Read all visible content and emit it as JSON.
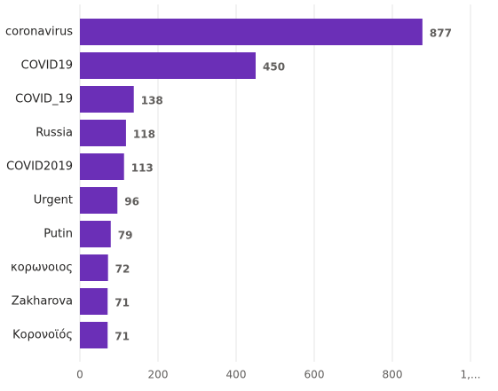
{
  "chart_data": {
    "type": "hbar",
    "categories": [
      "coronavirus",
      "COVID19",
      "COVID_19",
      "Russia",
      "COVID2019",
      "Urgent",
      "Putin",
      "κορωνοιος",
      "Zakharova",
      "Κορονοϊός"
    ],
    "values": [
      877,
      450,
      138,
      118,
      113,
      96,
      79,
      72,
      71,
      71
    ],
    "color": "#6b2fb7",
    "xlim": [
      0,
      1000
    ],
    "xticks": [
      0,
      200,
      400,
      600,
      800,
      {
        "value": 1000,
        "label": "1,..."
      }
    ],
    "grid": true
  }
}
